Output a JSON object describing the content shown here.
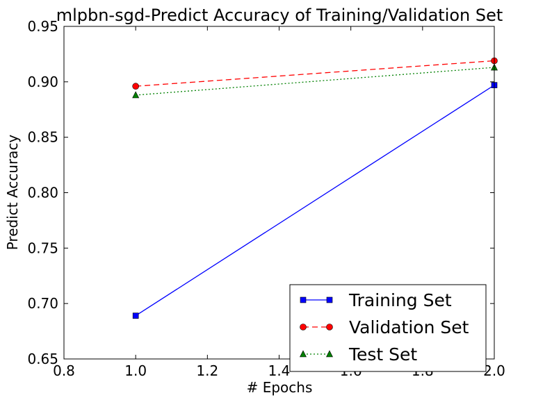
{
  "chart_data": {
    "type": "line",
    "title": "mlpbn-sgd-Predict Accuracy of Training/Validation Set",
    "xlabel": "# Epochs",
    "ylabel": "Predict Accuracy",
    "xlim": [
      0.8,
      2.0
    ],
    "ylim": [
      0.65,
      0.95
    ],
    "xticks": [
      "0.8",
      "1.0",
      "1.2",
      "1.4",
      "1.6",
      "1.8",
      "2.0"
    ],
    "yticks": [
      "0.65",
      "0.70",
      "0.75",
      "0.80",
      "0.85",
      "0.90",
      "0.95"
    ],
    "grid": false,
    "legend_position": "lower-right",
    "series": [
      {
        "name": "Training Set",
        "x": [
          1.0,
          2.0
        ],
        "y": [
          0.689,
          0.897
        ],
        "color": "#0000ff",
        "linestyle": "solid",
        "marker": "square"
      },
      {
        "name": "Validation Set",
        "x": [
          1.0,
          2.0
        ],
        "y": [
          0.896,
          0.919
        ],
        "color": "#ff0000",
        "linestyle": "dashed",
        "marker": "circle"
      },
      {
        "name": "Test Set",
        "x": [
          1.0,
          2.0
        ],
        "y": [
          0.888,
          0.913
        ],
        "color": "#008000",
        "linestyle": "dotted",
        "marker": "triangle"
      }
    ]
  }
}
